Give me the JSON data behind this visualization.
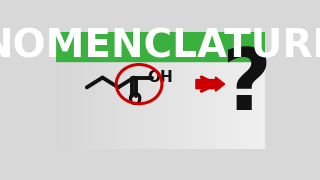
{
  "title": "NOMENCLATURE",
  "title_bg": "#3ab03e",
  "title_text_color": "#ffffff",
  "body_bg_left": "#d8d8d8",
  "body_bg_right": "#f0f0f0",
  "arrow_color": "#cc0000",
  "circle_color": "#cc0000",
  "bond_color": "#111111",
  "text_color": "#111111",
  "title_fontsize": 28,
  "oh_fontsize": 13,
  "o_fontsize": 11,
  "q_fontsize": 72
}
